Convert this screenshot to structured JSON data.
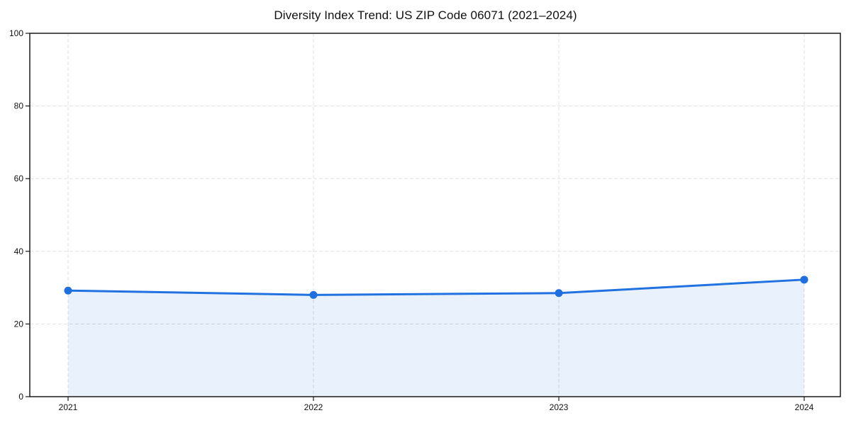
{
  "page": {
    "background_color": "#ffffff"
  },
  "chart_data": {
    "type": "line",
    "area_fill": true,
    "title": "Diversity Index Trend: US ZIP Code 06071 (2021–2024)",
    "categories": [
      "2021",
      "2022",
      "2023",
      "2024"
    ],
    "series": [
      {
        "name": "Diversity Index",
        "values": [
          29.2,
          28.0,
          28.5,
          32.2
        ]
      }
    ],
    "xlabel": "",
    "ylabel": "",
    "ylim": [
      0,
      100
    ],
    "yticks": [
      0,
      20,
      40,
      60,
      80,
      100
    ],
    "grid": true,
    "grid_style": "dashed",
    "legend": false,
    "marker": "circle",
    "colors": {
      "line": "#2172e0",
      "marker": "#1f6fe0",
      "fill": "rgba(33,114,224,0.10)",
      "grid": "#e3e3e3",
      "axis": "#1a1a1a",
      "text": "#111111"
    }
  }
}
